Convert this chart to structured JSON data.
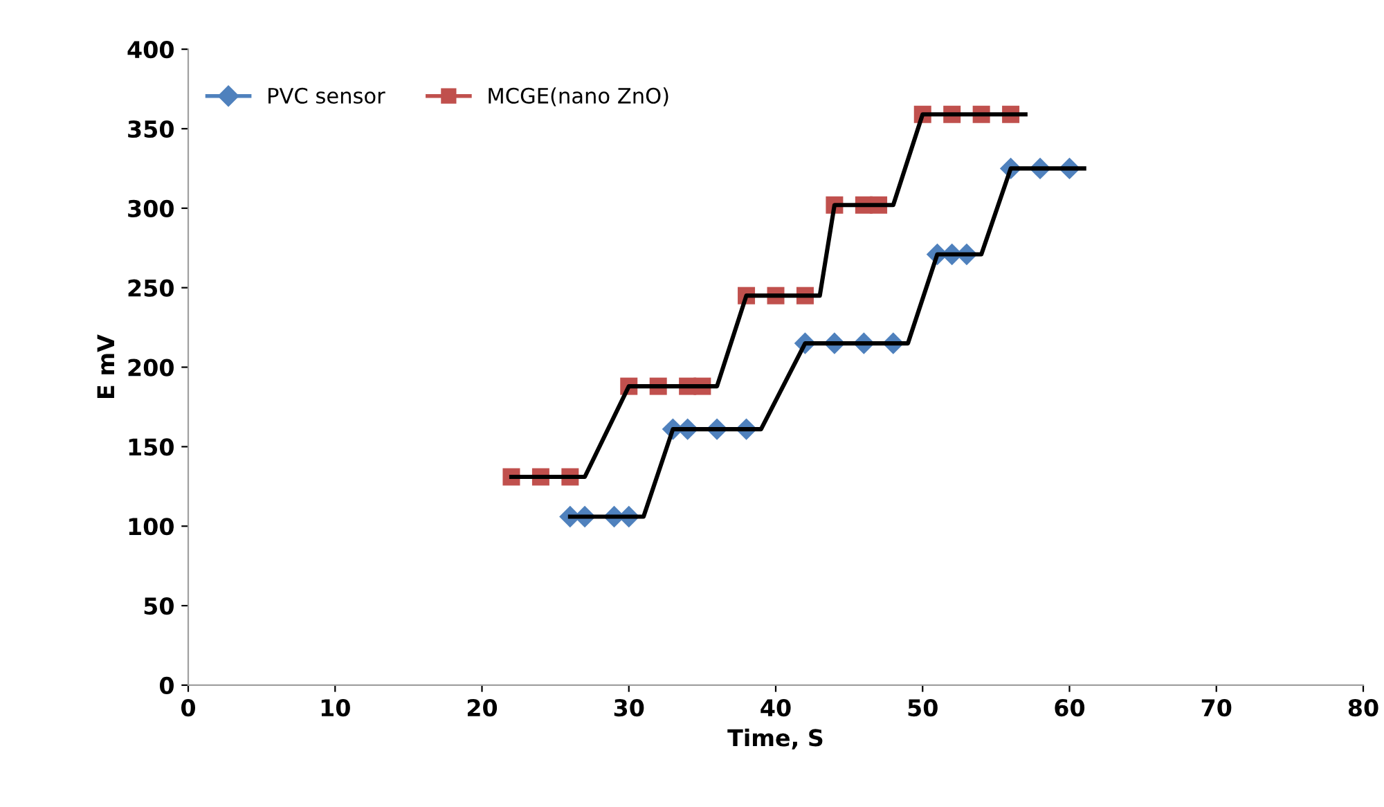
{
  "chart_data": {
    "type": "scatter",
    "xlabel": "Time, S",
    "ylabel": "E mV",
    "xlim": [
      0,
      80
    ],
    "xticks": [
      0,
      10,
      20,
      30,
      40,
      50,
      60,
      70,
      80
    ],
    "ylim": [
      0,
      400
    ],
    "yticks": [
      0,
      50,
      100,
      150,
      200,
      250,
      300,
      350,
      400
    ],
    "grid": false,
    "legend": "top left",
    "series": [
      {
        "name": "PVC sensor",
        "marker": "diamond",
        "color": "#4f81bd",
        "x": [
          26,
          27,
          29,
          30,
          33,
          34,
          36,
          38,
          42,
          44,
          46,
          48,
          51,
          52,
          53,
          56,
          58,
          60
        ],
        "values": [
          106,
          106,
          106,
          106,
          161,
          161,
          161,
          161,
          215,
          215,
          215,
          215,
          271,
          271,
          271,
          325,
          325,
          325
        ]
      },
      {
        "name": "MCGE(nano ZnO)",
        "marker": "square",
        "color": "#c0504d",
        "x": [
          22,
          24,
          26,
          30,
          32,
          34,
          35,
          38,
          40,
          42,
          44,
          46,
          47,
          50,
          52,
          54,
          56
        ],
        "values": [
          131,
          131,
          131,
          188,
          188,
          188,
          188,
          245,
          245,
          245,
          302,
          302,
          302,
          359,
          359,
          359,
          359
        ]
      },
      {
        "type": "line",
        "marker": "none",
        "color": "#000000",
        "x": [
          26,
          31,
          33,
          39,
          42,
          49,
          51,
          54,
          56,
          61
        ],
        "values": [
          106,
          106,
          161,
          161,
          215,
          215,
          271,
          271,
          325,
          325
        ]
      },
      {
        "type": "line",
        "marker": "none",
        "color": "#000000",
        "x": [
          22,
          27,
          30,
          36,
          38,
          43,
          44,
          48,
          50,
          57
        ],
        "values": [
          131,
          131,
          188,
          188,
          245,
          245,
          302,
          302,
          359,
          359
        ]
      }
    ]
  }
}
